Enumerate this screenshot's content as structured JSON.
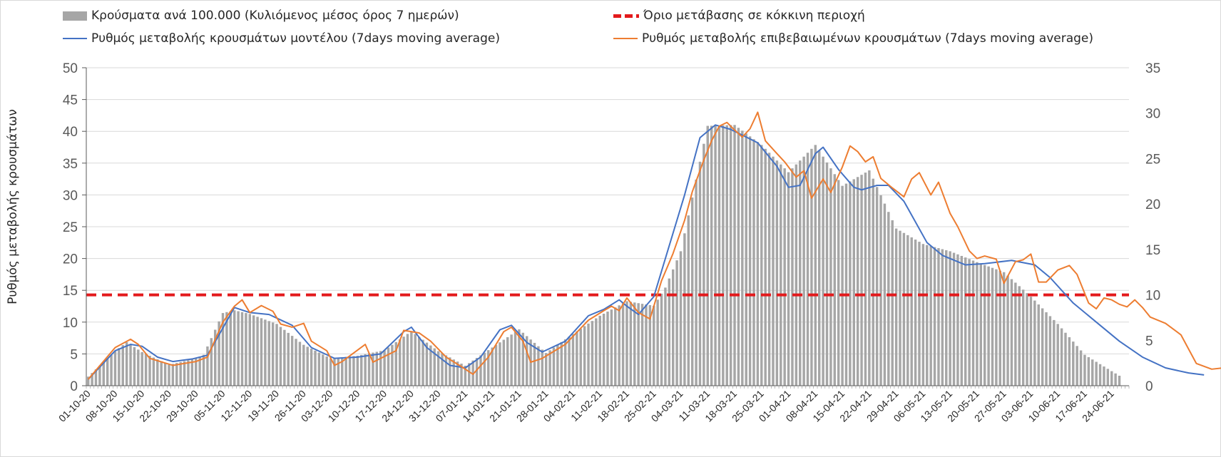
{
  "legend": {
    "bars": "Κρούσματα ανά 100.000 (Κυλιόμενος μέσος όρος 7 ημερών)",
    "threshold": "Όριο μετάβασης σε κόκκινη περιοχή",
    "model": "Ρυθμός μεταβολής κρουσμάτων μοντέλου (7days moving average)",
    "confirmed": "Ρυθμός μεταβολής επιβεβαιωμένων κρουσμάτων (7days moving average)"
  },
  "chart_data": {
    "type": "bar+line",
    "ylabel": "Ρυθμός μεταβολής κρουσμάτων",
    "ylim": [
      0,
      50
    ],
    "yticks": [
      0,
      5,
      10,
      15,
      20,
      25,
      30,
      35,
      40,
      45,
      50
    ],
    "y2lim": [
      0,
      35
    ],
    "y2ticks": [
      0,
      5,
      10,
      15,
      20,
      25,
      30,
      35
    ],
    "grid": true,
    "legend_position": "top",
    "x_tick_labels": [
      "01-10-20",
      "08-10-20",
      "15-10-20",
      "22-10-20",
      "29-10-20",
      "05-11-20",
      "12-11-20",
      "19-11-20",
      "26-11-20",
      "03-12-20",
      "10-12-20",
      "17-12-20",
      "24-12-20",
      "31-12-20",
      "07-01-21",
      "14-01-21",
      "21-01-21",
      "28-01-21",
      "04-02-21",
      "11-02-21",
      "18-02-21",
      "25-02-21",
      "04-03-21",
      "11-03-21",
      "18-03-21",
      "25-03-21",
      "01-04-21",
      "08-04-21",
      "15-04-21",
      "22-04-21",
      "29-04-21",
      "06-05-21",
      "13-05-21",
      "20-05-21",
      "27-05-21",
      "03-06-21",
      "10-06-21",
      "17-06-21",
      "24-06-21"
    ],
    "threshold": {
      "value": 10,
      "axis": "right"
    },
    "colors": {
      "bars": "#a6a6a6",
      "threshold": "#e31a1c",
      "model": "#4472c4",
      "confirmed": "#ed7d31",
      "grid": "#d9d9d9"
    },
    "series": [
      {
        "name": "Κρούσματα ανά 100.000 (Κυλιόμενος μέσος όρος 7 ημερών)",
        "axis": "right",
        "kind": "bar",
        "keypoints": [
          [
            0,
            1
          ],
          [
            7,
            3.8
          ],
          [
            10,
            4.8
          ],
          [
            14,
            3.7
          ],
          [
            21,
            2.3
          ],
          [
            28,
            3
          ],
          [
            30,
            3.4
          ],
          [
            35,
            8
          ],
          [
            38,
            8.3
          ],
          [
            42,
            7.9
          ],
          [
            49,
            6.8
          ],
          [
            56,
            4.5
          ],
          [
            63,
            3
          ],
          [
            70,
            3.3
          ],
          [
            77,
            3.9
          ],
          [
            84,
            6
          ],
          [
            91,
            3.8
          ],
          [
            98,
            2.2
          ],
          [
            105,
            4.2
          ],
          [
            112,
            6.2
          ],
          [
            119,
            3.6
          ],
          [
            126,
            5.7
          ],
          [
            133,
            7.7
          ],
          [
            140,
            9.3
          ],
          [
            147,
            8.8
          ],
          [
            150,
            10.8
          ],
          [
            154,
            14.8
          ],
          [
            161,
            28.6
          ],
          [
            168,
            28.7
          ],
          [
            175,
            26.5
          ],
          [
            182,
            23.5
          ],
          [
            189,
            26.5
          ],
          [
            196,
            22
          ],
          [
            203,
            23.7
          ],
          [
            210,
            17.3
          ],
          [
            217,
            15.6
          ],
          [
            224,
            14.8
          ],
          [
            231,
            13.6
          ],
          [
            238,
            12.5
          ],
          [
            245,
            9.8
          ],
          [
            252,
            6.8
          ],
          [
            259,
            3.4
          ],
          [
            266,
            1.6
          ],
          [
            268,
            1.1
          ]
        ]
      },
      {
        "name": "Ρυθμός μεταβολής κρουσμάτων μοντέλου (7days moving average)",
        "axis": "left",
        "kind": "line",
        "keypoints": [
          [
            0,
            1
          ],
          [
            7,
            5.5
          ],
          [
            11,
            6.5
          ],
          [
            14,
            6.2
          ],
          [
            18,
            4.5
          ],
          [
            22,
            3.8
          ],
          [
            27,
            4.2
          ],
          [
            31,
            4.8
          ],
          [
            34,
            8
          ],
          [
            38,
            12.3
          ],
          [
            42,
            11.5
          ],
          [
            47,
            11.2
          ],
          [
            53,
            9.5
          ],
          [
            58,
            6
          ],
          [
            64,
            4.3
          ],
          [
            70,
            4.5
          ],
          [
            76,
            5
          ],
          [
            82,
            8.5
          ],
          [
            84,
            9.2
          ],
          [
            88,
            6
          ],
          [
            94,
            3.2
          ],
          [
            98,
            2.8
          ],
          [
            102,
            4.5
          ],
          [
            107,
            8.8
          ],
          [
            110,
            9.5
          ],
          [
            114,
            6.8
          ],
          [
            118,
            5.3
          ],
          [
            124,
            7
          ],
          [
            130,
            11
          ],
          [
            134,
            12
          ],
          [
            138,
            13.5
          ],
          [
            140,
            12.5
          ],
          [
            143,
            11.2
          ],
          [
            147,
            14
          ],
          [
            151,
            22
          ],
          [
            155,
            30
          ],
          [
            159,
            39
          ],
          [
            163,
            41
          ],
          [
            167,
            40.3
          ],
          [
            174,
            38.2
          ],
          [
            179,
            34.5
          ],
          [
            182,
            31.2
          ],
          [
            185,
            31.5
          ],
          [
            189,
            36.5
          ],
          [
            191,
            37.5
          ],
          [
            195,
            34
          ],
          [
            199,
            31.2
          ],
          [
            201,
            30.8
          ],
          [
            205,
            31.5
          ],
          [
            208,
            31.5
          ],
          [
            212,
            29
          ],
          [
            218,
            22.5
          ],
          [
            222,
            20.5
          ],
          [
            228,
            19
          ],
          [
            233,
            19.2
          ],
          [
            240,
            19.7
          ],
          [
            246,
            19
          ],
          [
            250,
            17
          ],
          [
            256,
            13
          ],
          [
            262,
            10
          ],
          [
            268,
            7
          ],
          [
            274,
            4.5
          ],
          [
            280,
            2.8
          ],
          [
            286,
            2
          ],
          [
            290,
            1.7
          ]
        ]
      },
      {
        "name": "Ρυθμός μεταβολής επιβεβαιωμένων κρουσμάτων (7days moving average)",
        "axis": "left",
        "kind": "line",
        "keypoints": [
          [
            0,
            1
          ],
          [
            7,
            6
          ],
          [
            11,
            7.3
          ],
          [
            13,
            6.5
          ],
          [
            16,
            4.3
          ],
          [
            22,
            3.2
          ],
          [
            28,
            3.8
          ],
          [
            31,
            4.5
          ],
          [
            35,
            10
          ],
          [
            38,
            12.5
          ],
          [
            40,
            13.5
          ],
          [
            42,
            11.5
          ],
          [
            45,
            12.6
          ],
          [
            48,
            11.7
          ],
          [
            50,
            9.7
          ],
          [
            53,
            9.2
          ],
          [
            56,
            9.8
          ],
          [
            58,
            7
          ],
          [
            62,
            5.5
          ],
          [
            64,
            3.2
          ],
          [
            66,
            3.8
          ],
          [
            72,
            6.5
          ],
          [
            74,
            3.7
          ],
          [
            80,
            5.5
          ],
          [
            82,
            8.7
          ],
          [
            86,
            8.3
          ],
          [
            89,
            7
          ],
          [
            93,
            4.5
          ],
          [
            97,
            3
          ],
          [
            100,
            1.8
          ],
          [
            104,
            4.5
          ],
          [
            108,
            8.5
          ],
          [
            110,
            9.2
          ],
          [
            113,
            7
          ],
          [
            115,
            3.7
          ],
          [
            118,
            4.3
          ],
          [
            124,
            6.5
          ],
          [
            130,
            10.3
          ],
          [
            134,
            11.8
          ],
          [
            136,
            12.5
          ],
          [
            138,
            11.8
          ],
          [
            140,
            13.8
          ],
          [
            143,
            11.5
          ],
          [
            146,
            10.5
          ],
          [
            149,
            16.5
          ],
          [
            152,
            20.8
          ],
          [
            155,
            26
          ],
          [
            157,
            30.5
          ],
          [
            160,
            35.5
          ],
          [
            162,
            38.5
          ],
          [
            164,
            40.8
          ],
          [
            166,
            41.4
          ],
          [
            168,
            40.2
          ],
          [
            170,
            39.1
          ],
          [
            172,
            40.4
          ],
          [
            174,
            43
          ],
          [
            176,
            38.5
          ],
          [
            179,
            36.5
          ],
          [
            181,
            35.2
          ],
          [
            184,
            32.8
          ],
          [
            186,
            33.8
          ],
          [
            188,
            29.5
          ],
          [
            191,
            32.5
          ],
          [
            193,
            30.4
          ],
          [
            196,
            34.4
          ],
          [
            198,
            37.7
          ],
          [
            200,
            36.8
          ],
          [
            202,
            35.2
          ],
          [
            204,
            36
          ],
          [
            206,
            32.6
          ],
          [
            209,
            31.1
          ],
          [
            212,
            29.7
          ],
          [
            214,
            32.5
          ],
          [
            216,
            33.5
          ],
          [
            219,
            30
          ],
          [
            221,
            32
          ],
          [
            224,
            27.1
          ],
          [
            226,
            25
          ],
          [
            229,
            21.2
          ],
          [
            231,
            20
          ],
          [
            233,
            20.4
          ],
          [
            236,
            19.9
          ],
          [
            238,
            16.1
          ],
          [
            241,
            19.5
          ],
          [
            243,
            19.8
          ],
          [
            245,
            20.7
          ],
          [
            247,
            16.3
          ],
          [
            249,
            16.3
          ],
          [
            252,
            18.2
          ],
          [
            255,
            18.9
          ],
          [
            257,
            17.5
          ],
          [
            260,
            13
          ],
          [
            262,
            12.1
          ],
          [
            264,
            13.8
          ],
          [
            266,
            13.5
          ],
          [
            268,
            12.8
          ],
          [
            270,
            12.4
          ],
          [
            272,
            13.5
          ],
          [
            274,
            12.3
          ],
          [
            276,
            10.8
          ],
          [
            280,
            9.8
          ],
          [
            284,
            8
          ],
          [
            288,
            3.5
          ],
          [
            292,
            2.6
          ],
          [
            295,
            2.8
          ]
        ]
      }
    ]
  }
}
